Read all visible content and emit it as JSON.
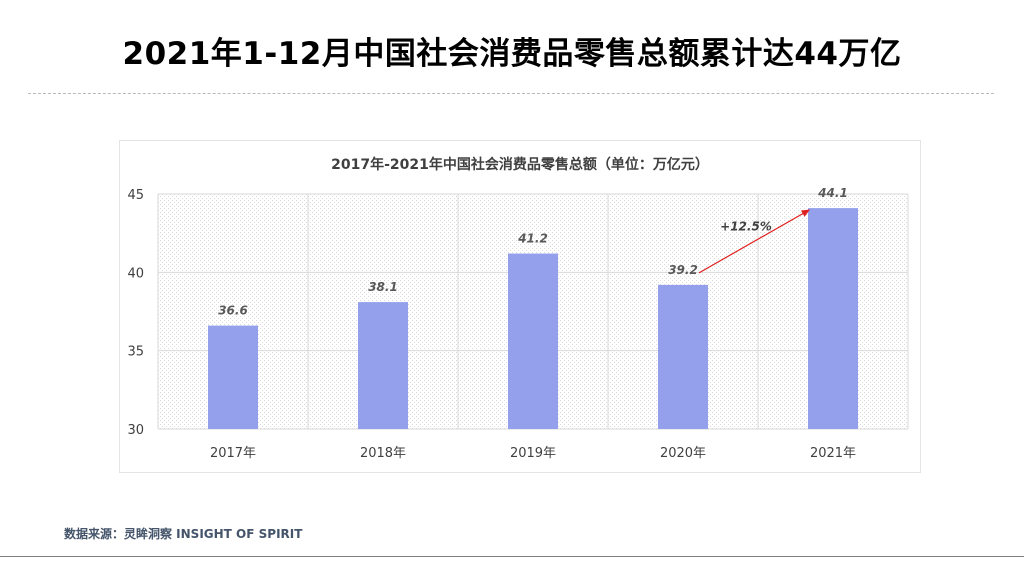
{
  "slide": {
    "title": "2021年1-12月中国社会消费品零售总额累计达44万亿",
    "source": "数据来源：灵眸洞察 INSIGHT OF SPIRIT"
  },
  "chart_data": {
    "type": "bar",
    "title": "2017年-2021年中国社会消费品零售总额（单位：万亿元）",
    "categories": [
      "2017年",
      "2018年",
      "2019年",
      "2020年",
      "2021年"
    ],
    "values": [
      36.6,
      38.1,
      41.2,
      39.2,
      44.1
    ],
    "data_labels": [
      "36.6",
      "38.1",
      "41.2",
      "39.2",
      "44.1"
    ],
    "y_ticks": [
      "30",
      "35",
      "40",
      "45"
    ],
    "ylim": [
      30,
      45
    ],
    "xlabel": "",
    "ylabel": "",
    "grid": true,
    "bar_color": "#95a0ec",
    "annotation": {
      "from": "2020年",
      "to": "2021年",
      "text": "+12.5%",
      "color": "#e02020"
    }
  }
}
